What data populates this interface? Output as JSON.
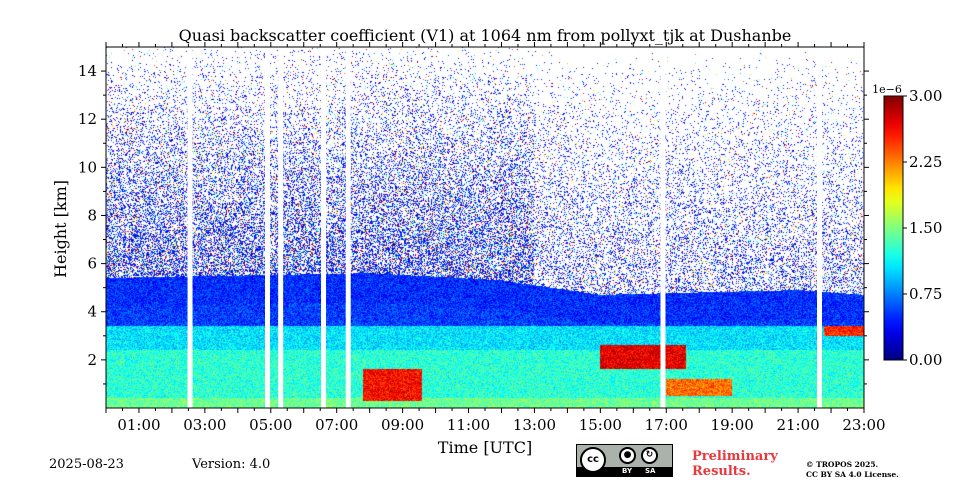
{
  "chart_data": {
    "type": "heatmap",
    "title": "Quasi backscatter coefficient (V1) at 1064 nm from pollyxt_tjk at Dushanbe",
    "xlabel": "Time [UTC]",
    "ylabel": "Height [km]",
    "x_tick_labels": [
      "01:00",
      "03:00",
      "05:00",
      "07:00",
      "09:00",
      "11:00",
      "13:00",
      "15:00",
      "17:00",
      "19:00",
      "21:00",
      "23:00"
    ],
    "x_tick_hours": [
      1,
      3,
      5,
      7,
      9,
      11,
      13,
      15,
      17,
      19,
      21,
      23
    ],
    "xlim_hours": [
      0,
      23
    ],
    "y_ticks": [
      2,
      4,
      6,
      8,
      10,
      12,
      14
    ],
    "ylim": [
      0,
      15
    ],
    "colorbar": {
      "scale_label": "1e−6",
      "ticks": [
        "0.00",
        "0.75",
        "1.50",
        "2.25",
        "3.00"
      ],
      "tick_values": [
        0,
        0.75,
        1.5,
        2.25,
        3.0
      ],
      "range": [
        0,
        3.0
      ],
      "colormap": "jet"
    },
    "data_gaps_hours": [
      2.55,
      4.9,
      5.3,
      6.6,
      7.35,
      16.9,
      21.65
    ],
    "boundary_layer_top_km": [
      {
        "t": 0,
        "h": 5.4
      },
      {
        "t": 4,
        "h": 5.5
      },
      {
        "t": 8,
        "h": 5.6
      },
      {
        "t": 12,
        "h": 5.3
      },
      {
        "t": 15,
        "h": 4.7
      },
      {
        "t": 18,
        "h": 4.8
      },
      {
        "t": 21,
        "h": 4.9
      },
      {
        "t": 23,
        "h": 4.7
      }
    ],
    "enhanced_regions": [
      {
        "t_start": 7.8,
        "t_end": 9.6,
        "h_start": 0.3,
        "h_end": 1.6,
        "value": 2.6
      },
      {
        "t_start": 15.0,
        "t_end": 17.6,
        "h_start": 1.6,
        "h_end": 2.6,
        "value": 2.7
      },
      {
        "t_start": 17.0,
        "t_end": 19.0,
        "h_start": 0.5,
        "h_end": 1.2,
        "value": 2.3
      },
      {
        "t_start": 21.8,
        "t_end": 23.0,
        "h_start": 3.0,
        "h_end": 3.4,
        "value": 2.5
      }
    ]
  },
  "footer": {
    "date": "2025-08-23",
    "version": "Version: 4.0",
    "preliminary_line1": "Preliminary",
    "preliminary_line2": "Results.",
    "license_line1": "© TROPOS 2025.",
    "license_line2": "CC BY SA 4.0 License."
  },
  "badge": {
    "cc": "cc",
    "by_label": "BY",
    "sa_label": "SA"
  }
}
